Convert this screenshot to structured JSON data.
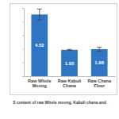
{
  "chart_data": {
    "type": "bar",
    "title": "S content of raw Whole moong, Kabuli chana and",
    "categories": [
      "Raw Whole Moong",
      "Raw Kabuli Chana",
      "Raw Chana Flour"
    ],
    "values": [
      4.52,
      1.93,
      1.98
    ],
    "errors": [
      0.4,
      0.03,
      0.15
    ],
    "color": "#2e75c4",
    "ylim": [
      0,
      5
    ],
    "yticks": [
      0,
      1,
      2,
      3,
      4,
      5
    ],
    "data_labels": true,
    "tick_labels": "x",
    "grid": false
  }
}
